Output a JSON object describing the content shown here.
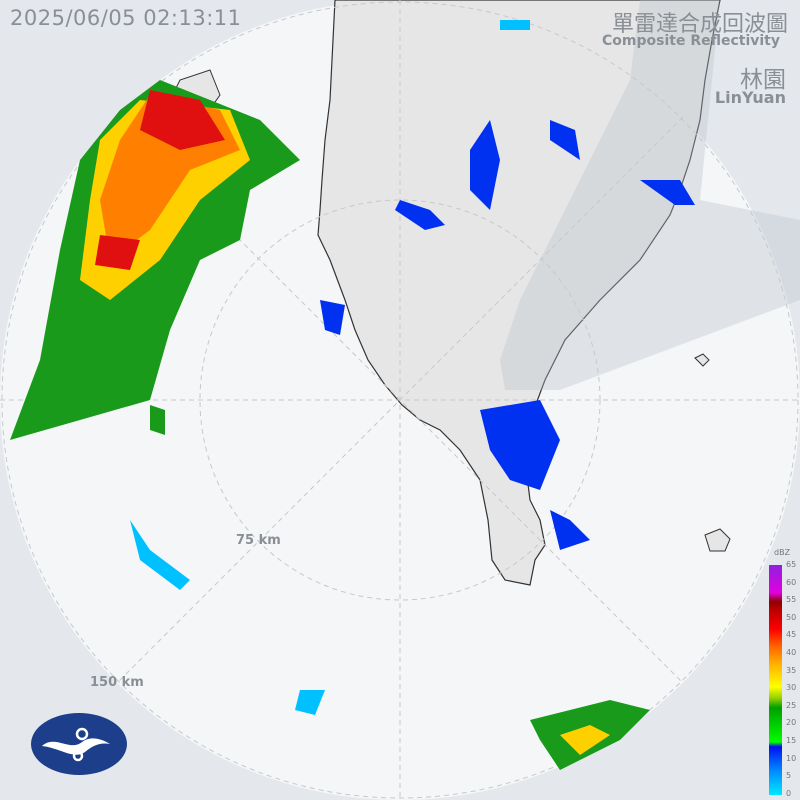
{
  "header": {
    "timestamp": "2025/06/05 02:13:11",
    "title_zh": "單雷達合成回波圖",
    "title_en": "Composite Reflectivity",
    "station_zh": "林園",
    "station_en": "LinYuan"
  },
  "rings": [
    {
      "label": "75 km"
    },
    {
      "label": "150 km"
    }
  ],
  "legend": {
    "unit": "dBZ",
    "ticks": [
      "65",
      "60",
      "55",
      "50",
      "45",
      "40",
      "35",
      "30",
      "25",
      "20",
      "15",
      "10",
      "5",
      "0"
    ]
  },
  "logo": {
    "icon": "cwa-logo-icon"
  },
  "colors": {
    "background": "#e4e8ed",
    "radar_area": "#f4f6f8",
    "land": "#e6e6e6",
    "range_rings": "#c8c8c8"
  }
}
